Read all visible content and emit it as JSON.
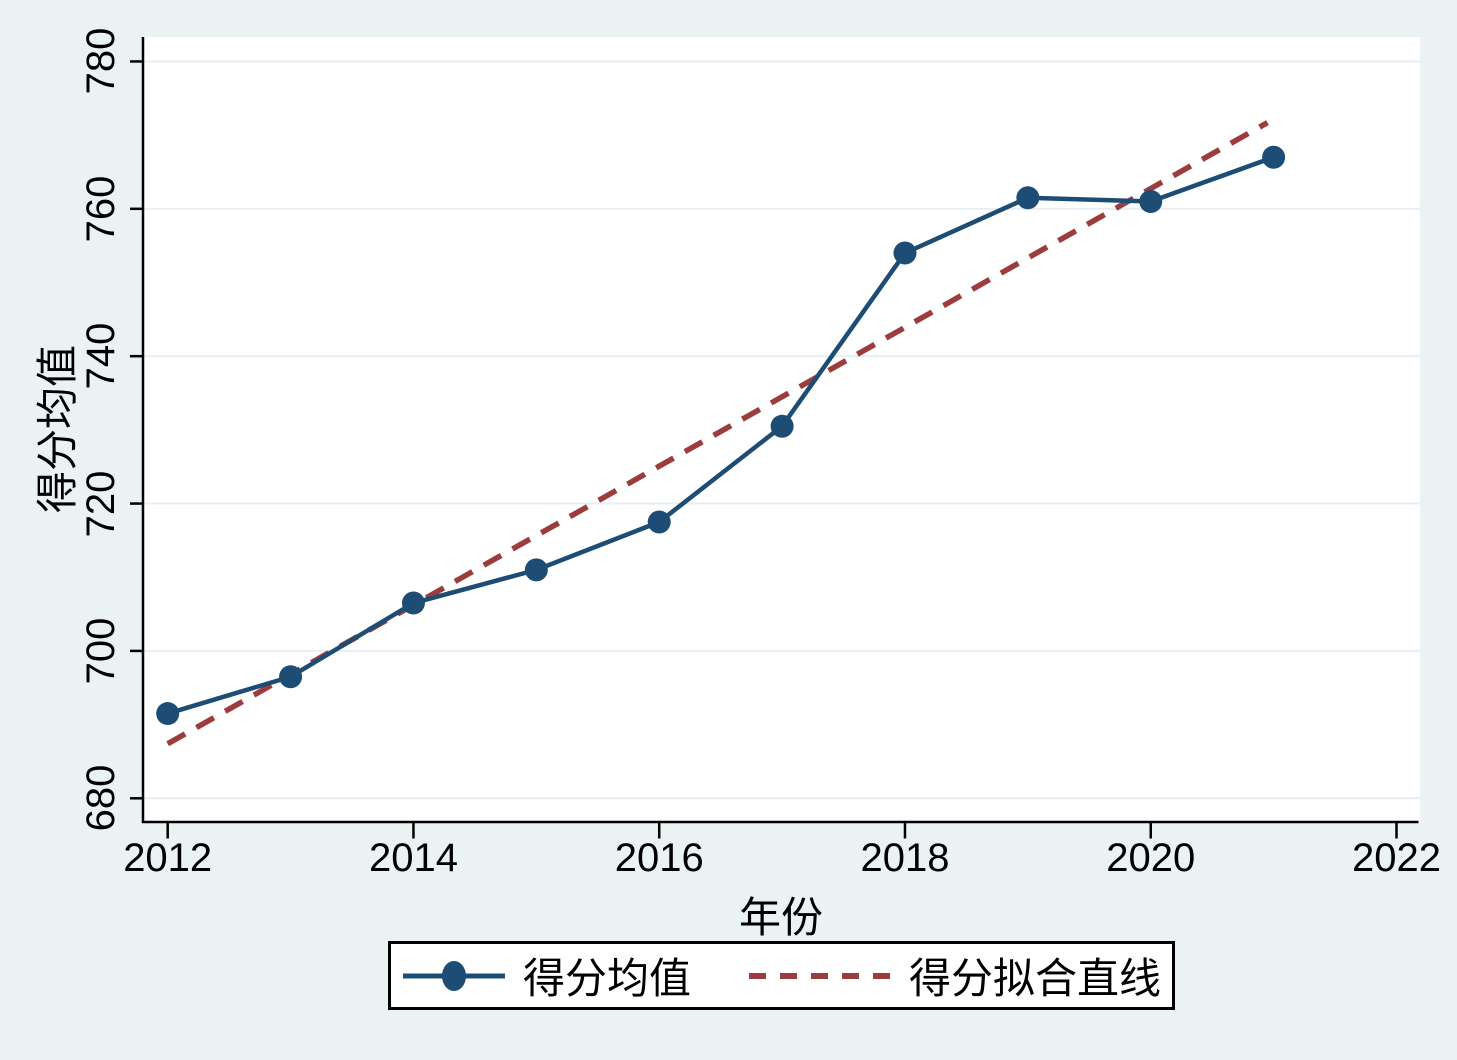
{
  "chart_data": {
    "type": "line",
    "title": "",
    "xlabel": "年份",
    "ylabel": "得分均值",
    "x": [
      2012,
      2013,
      2014,
      2015,
      2016,
      2017,
      2018,
      2019,
      2020,
      2021
    ],
    "series": [
      {
        "name": "得分均值",
        "style": "solid-with-markers",
        "color": "#1d4c74",
        "values": [
          691.5,
          696.5,
          706.5,
          711,
          717.5,
          730.5,
          754,
          761.5,
          761,
          767
        ]
      },
      {
        "name": "得分拟合直线",
        "style": "dashed",
        "color": "#9c3c3c",
        "x": [
          2012,
          2020.95
        ],
        "values": [
          687.4,
          771.7
        ]
      }
    ],
    "xticks": [
      2012,
      2014,
      2016,
      2018,
      2020,
      2022
    ],
    "yticks": [
      680,
      700,
      720,
      740,
      760,
      780
    ],
    "xlim": [
      2011.8,
      2022.2
    ],
    "ylim": [
      676.8,
      783.3
    ],
    "grid": "horizontal",
    "legend_position": "bottom-center"
  },
  "legend": {
    "items": [
      {
        "label": "得分均值"
      },
      {
        "label": "得分拟合直线"
      }
    ]
  },
  "colors": {
    "background": "#eaf2f3",
    "plot_background": "#ffffff",
    "gridline": "#e8eff4",
    "axis": "#000000",
    "series_line": "#1d4c74",
    "fit_line": "#9c3c3c"
  }
}
